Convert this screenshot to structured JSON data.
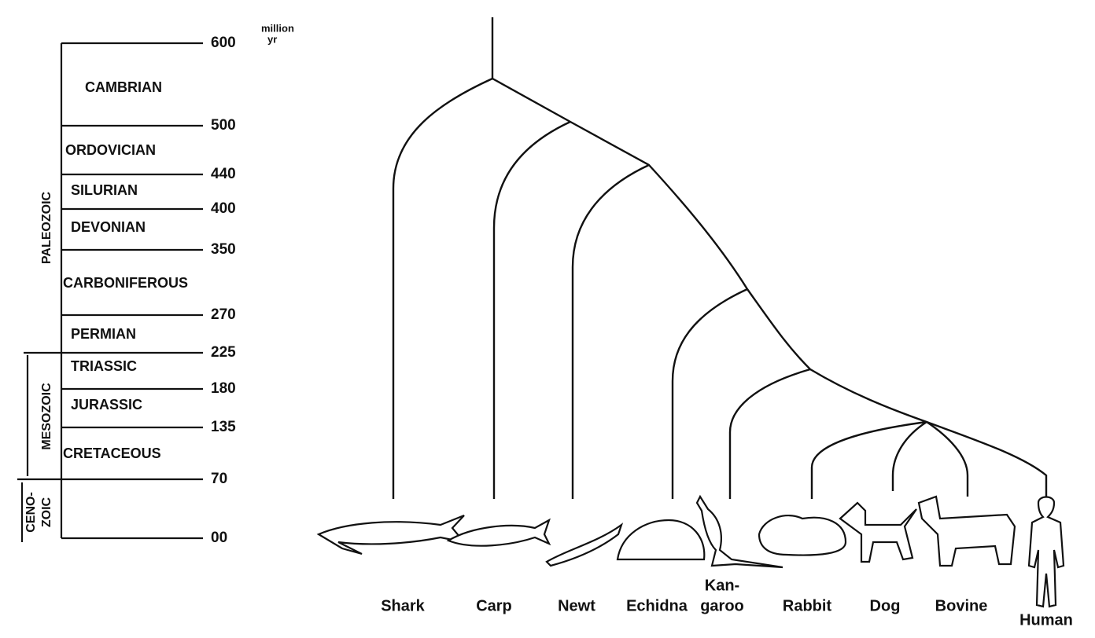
{
  "unit": [
    "million",
    "yr"
  ],
  "eras": [
    {
      "label": [
        "PALEOZOIC"
      ]
    },
    {
      "label": [
        "MESOZOIC"
      ]
    },
    {
      "label": [
        "CENO-",
        "ZOIC"
      ]
    }
  ],
  "periods": [
    "CAMBRIAN",
    "ORDOVICIAN",
    "SILURIAN",
    "DEVONIAN",
    "CARBONIFEROUS",
    "PERMIAN",
    "TRIASSIC",
    "JURASSIC",
    "CRETACEOUS"
  ],
  "ticks": [
    "600",
    "500",
    "440",
    "400",
    "350",
    "270",
    "225",
    "180",
    "135",
    "70",
    "00"
  ],
  "taxa": [
    [
      "Shark"
    ],
    [
      "Carp"
    ],
    [
      "Newt"
    ],
    [
      "Echidna"
    ],
    [
      "Kan-",
      "garoo"
    ],
    [
      "Rabbit"
    ],
    [
      "Dog"
    ],
    [
      "Bovine"
    ],
    [
      "Human"
    ]
  ]
}
